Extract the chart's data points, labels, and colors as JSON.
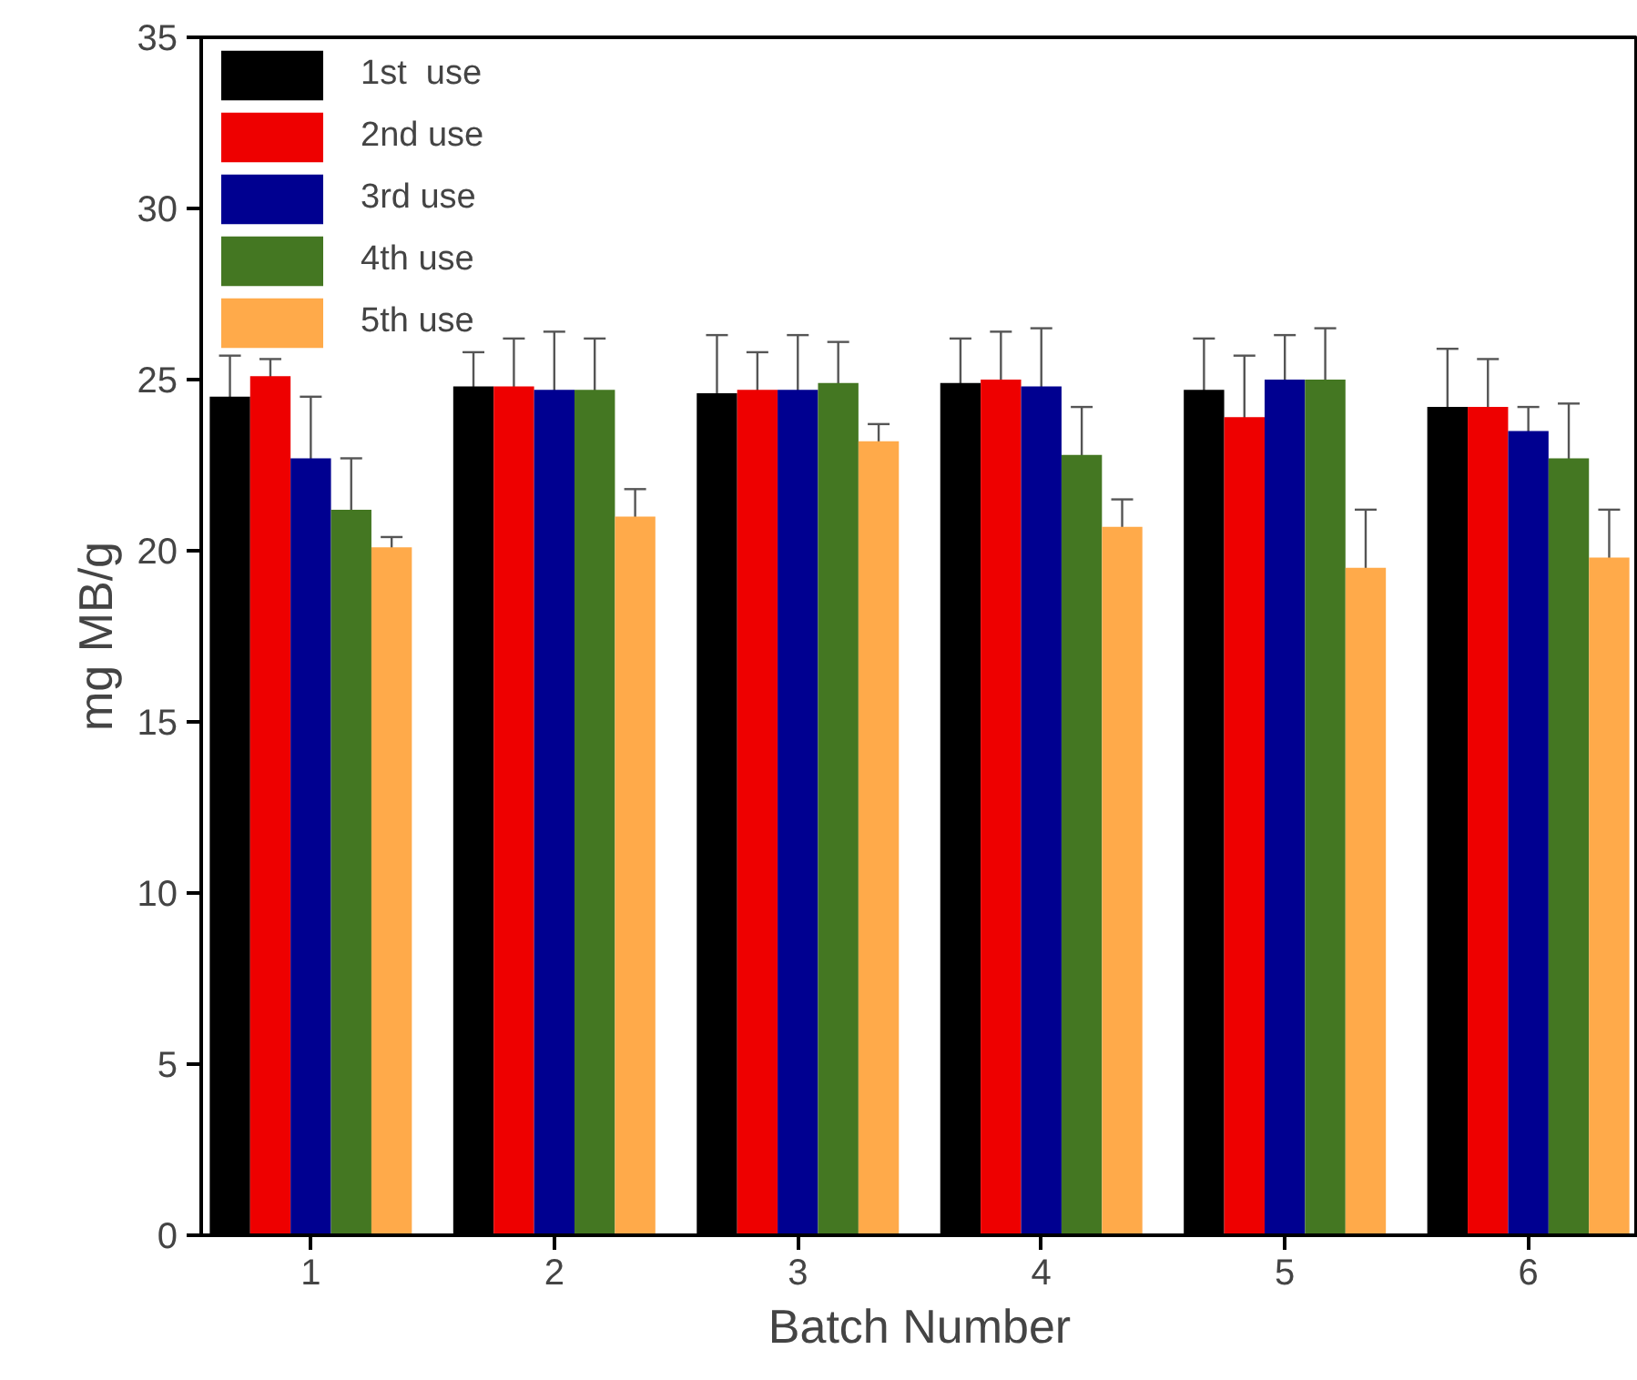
{
  "chart_data": {
    "type": "bar",
    "xlabel": "Batch Number",
    "ylabel": "mg MB/g",
    "categories": [
      "1",
      "2",
      "3",
      "4",
      "5",
      "6"
    ],
    "series": [
      {
        "name": "1st  use",
        "color": "#000000",
        "values": [
          24.5,
          24.8,
          24.6,
          24.9,
          24.7,
          24.2
        ],
        "errors": [
          1.2,
          1.0,
          1.7,
          1.3,
          1.5,
          1.7
        ]
      },
      {
        "name": "2nd use",
        "color": "#ee0000",
        "values": [
          25.1,
          24.8,
          24.7,
          25.0,
          23.9,
          24.2
        ],
        "errors": [
          0.5,
          1.4,
          1.1,
          1.4,
          1.8,
          1.4
        ]
      },
      {
        "name": "3rd use",
        "color": "#000090",
        "values": [
          22.7,
          24.7,
          24.7,
          24.8,
          25.0,
          23.5
        ],
        "errors": [
          1.8,
          1.7,
          1.6,
          1.7,
          1.3,
          0.7
        ]
      },
      {
        "name": "4th use",
        "color": "#447722",
        "values": [
          21.2,
          24.7,
          24.9,
          22.8,
          25.0,
          22.7
        ],
        "errors": [
          1.5,
          1.5,
          1.2,
          1.4,
          1.5,
          1.6
        ]
      },
      {
        "name": "5th use",
        "color": "#ffaa4a",
        "values": [
          20.1,
          21.0,
          23.2,
          20.7,
          19.5,
          19.8
        ],
        "errors": [
          0.3,
          0.8,
          0.5,
          0.8,
          1.7,
          1.4
        ]
      }
    ],
    "ylim": [
      0,
      35
    ],
    "yticks": [
      0,
      5,
      10,
      15,
      20,
      25,
      30,
      35
    ],
    "grid": false,
    "legend": "top left"
  }
}
